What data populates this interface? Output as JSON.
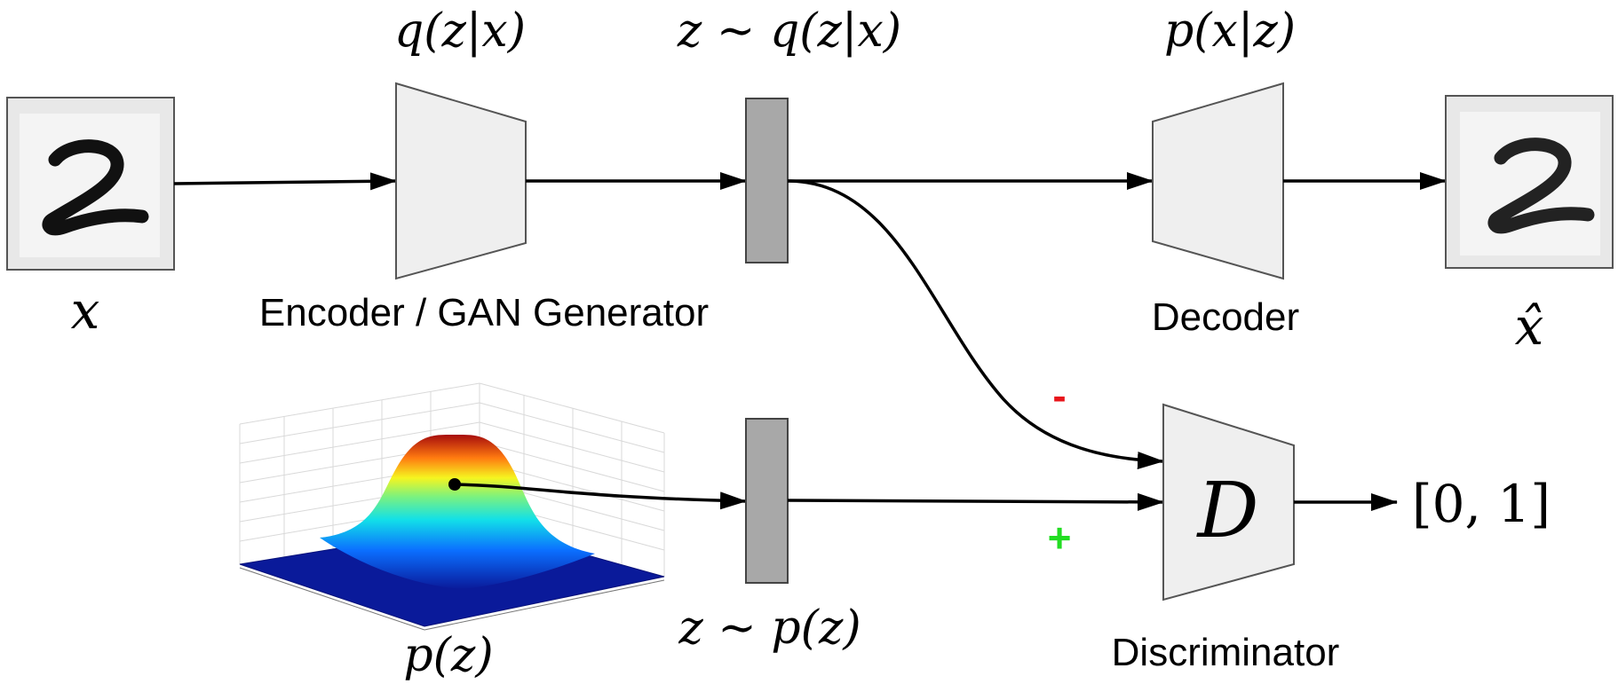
{
  "top_labels": {
    "encoder_dist": "q(z|x)",
    "latent_sample": "z ∼ q(z|x)",
    "decoder_dist": "p(x|z)"
  },
  "bottom_labels": {
    "input": "x",
    "encoder": "Encoder / GAN Generator",
    "decoder": "Decoder",
    "reconstruction": "x̂",
    "prior": "p(z)",
    "prior_sample": "z ∼ p(z)",
    "discriminator": "Discriminator"
  },
  "discriminator": {
    "symbol": "D",
    "output": "[0, 1]",
    "negative_sign": "-",
    "positive_sign": "+"
  },
  "digit": "2",
  "colors": {
    "negative": "#e8151b",
    "positive": "#22dd22",
    "block_fill": "#efefef",
    "latent_fill": "#a8a8a8"
  }
}
